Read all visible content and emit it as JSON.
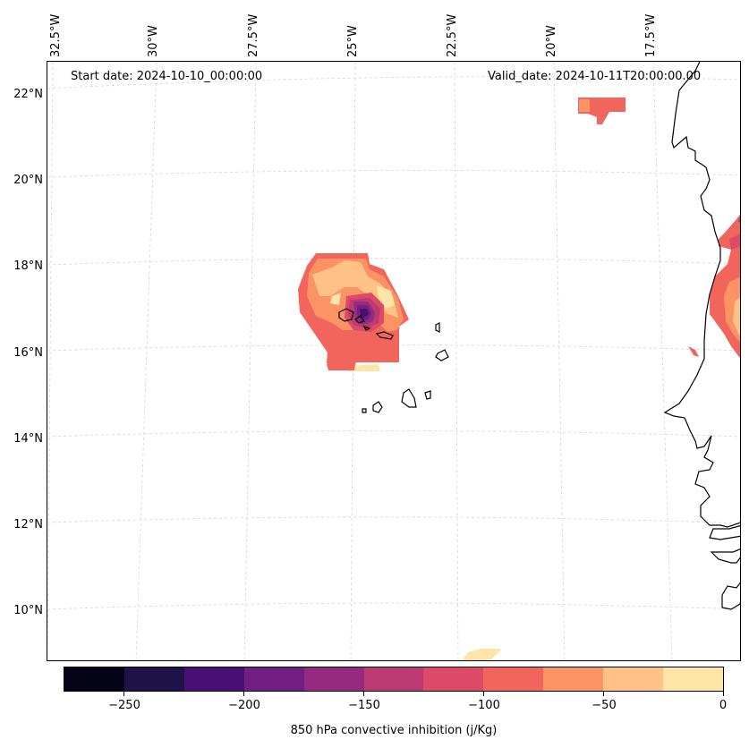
{
  "map": {
    "start_date": "Start date: 2024-10-10_00:00:00",
    "valid_date": "Valid_date: 2024-10-11T20:00:00.00",
    "lon_labels": [
      "32.5°W",
      "30°W",
      "27.5°W",
      "25°W",
      "22.5°W",
      "20°W",
      "17.5°W"
    ],
    "lat_labels": [
      "22°N",
      "20°N",
      "18°N",
      "16°N",
      "14°N",
      "12°N",
      "10°N"
    ],
    "features": [
      "Cabo Verde islands",
      "West African coastline",
      "convective inhibition contours"
    ]
  },
  "colorbar": {
    "label": "850 hPa convective inhibition (j/Kg)",
    "tick_labels": [
      "−250",
      "−200",
      "−150",
      "−100",
      "−50",
      "0"
    ],
    "range": [
      -275,
      0
    ],
    "levels": [
      -275,
      -250,
      -225,
      -200,
      -175,
      -150,
      -125,
      -100,
      -75,
      -50,
      -25,
      0
    ],
    "colors": [
      "#050416",
      "#1e1249",
      "#4a0f74",
      "#711f81",
      "#952b7f",
      "#bb3a72",
      "#dd4a68",
      "#f2655c",
      "#fc9365",
      "#fec286",
      "#fde5a8"
    ]
  }
}
